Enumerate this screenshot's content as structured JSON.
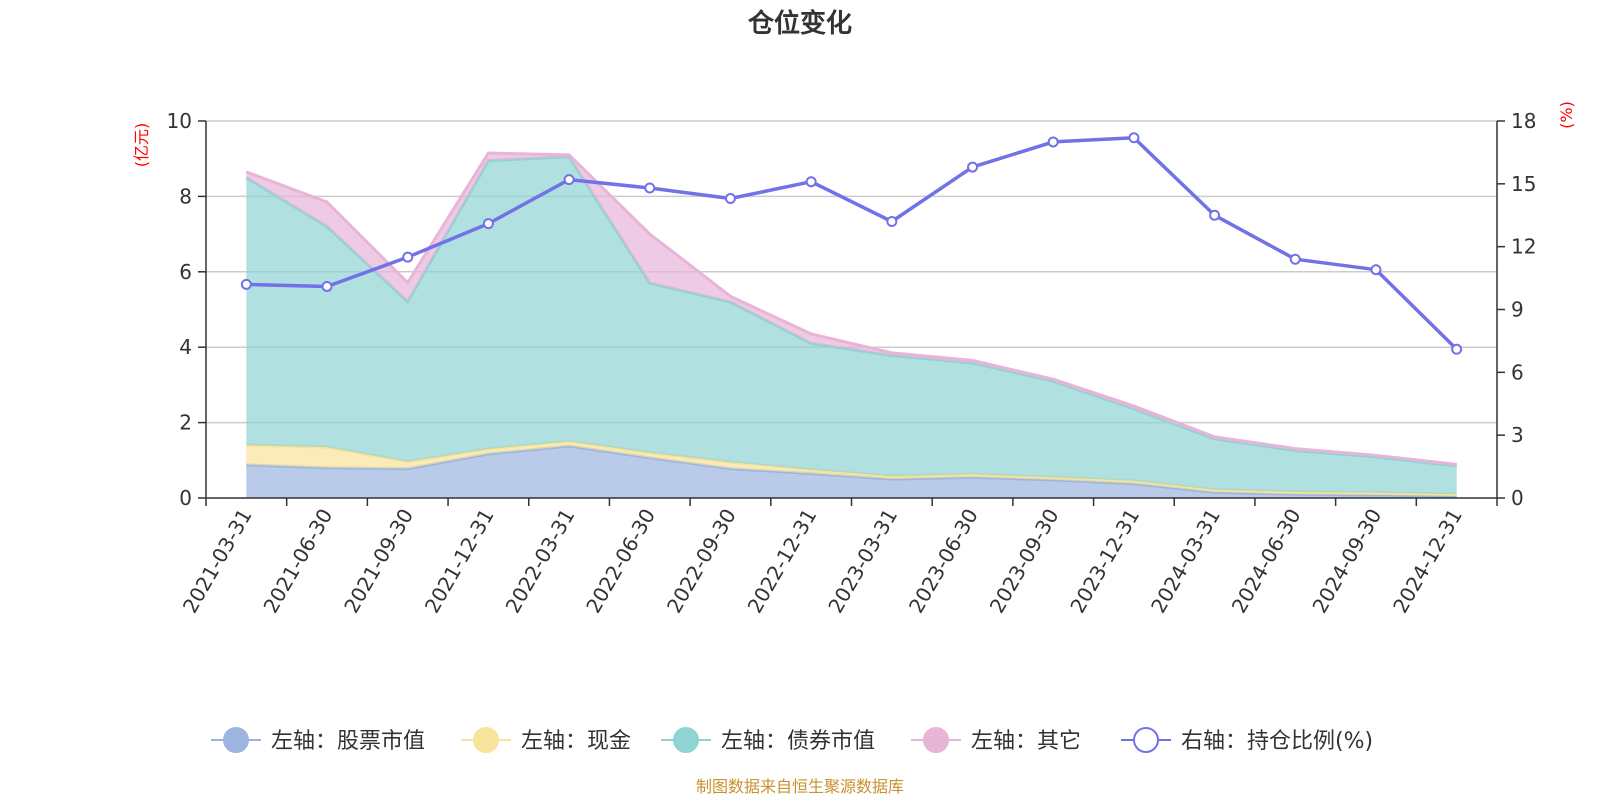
{
  "chart_data": {
    "type": "area",
    "title": "仓位变化",
    "left_axis_unit": "(亿元)",
    "right_axis_unit": "(%)",
    "categories": [
      "2021-03-31",
      "2021-06-30",
      "2021-09-30",
      "2021-12-31",
      "2022-03-31",
      "2022-06-30",
      "2022-09-30",
      "2022-12-31",
      "2023-03-31",
      "2023-06-30",
      "2023-09-30",
      "2023-12-31",
      "2024-03-31",
      "2024-06-30",
      "2024-09-30",
      "2024-12-31"
    ],
    "left_ylim": [
      0,
      10
    ],
    "left_ticks": [
      0,
      2,
      4,
      6,
      8,
      10
    ],
    "right_ylim": [
      0,
      18
    ],
    "right_ticks": [
      0,
      3,
      6,
      9,
      12,
      15,
      18
    ],
    "stacked_series": [
      {
        "name": "左轴：股票市值",
        "color": "#9bb5e0",
        "values": [
          0.88,
          0.8,
          0.78,
          1.17,
          1.38,
          1.07,
          0.78,
          0.65,
          0.5,
          0.55,
          0.48,
          0.38,
          0.15,
          0.1,
          0.08,
          0.05
        ]
      },
      {
        "name": "左轴：现金",
        "color": "#f8e39a",
        "values": [
          0.52,
          0.55,
          0.18,
          0.13,
          0.12,
          0.13,
          0.17,
          0.1,
          0.08,
          0.08,
          0.07,
          0.08,
          0.07,
          0.06,
          0.06,
          0.05
        ]
      },
      {
        "name": "左轴：债券市值",
        "color": "#8fd3d3",
        "values": [
          7.1,
          5.85,
          4.25,
          7.65,
          7.55,
          4.5,
          4.25,
          3.35,
          3.2,
          2.95,
          2.55,
          1.9,
          1.35,
          1.1,
          0.95,
          0.75
        ]
      },
      {
        "name": "左轴：其它",
        "color": "#e8b4d8",
        "values": [
          0.15,
          0.65,
          0.5,
          0.2,
          0.05,
          1.3,
          0.15,
          0.25,
          0.07,
          0.07,
          0.05,
          0.08,
          0.05,
          0.05,
          0.04,
          0.04
        ]
      }
    ],
    "line_series": {
      "name": "右轴：持仓比例(%)",
      "color": "#7272e8",
      "axis": "right",
      "values": [
        10.2,
        10.1,
        11.5,
        13.1,
        15.2,
        14.8,
        14.3,
        15.1,
        13.2,
        15.8,
        17.0,
        17.2,
        13.5,
        11.4,
        10.9,
        7.1
      ]
    },
    "legend_position": "bottom",
    "grid": true
  },
  "footer": {
    "source": "制图数据来自恒生聚源数据库"
  }
}
